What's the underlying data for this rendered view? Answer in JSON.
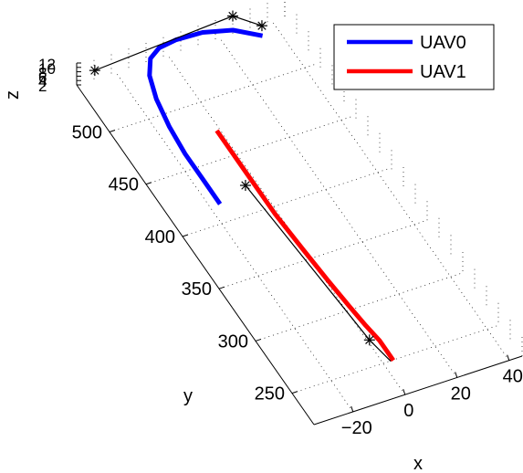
{
  "chart_data": {
    "type": "line",
    "view": "3d",
    "xlabel": "x",
    "ylabel": "y",
    "zlabel": "z",
    "x_ticks": [
      "−20",
      "0",
      "20",
      "40"
    ],
    "y_ticks": [
      "250",
      "300",
      "350",
      "400",
      "450",
      "500"
    ],
    "z_ticks": [
      "2",
      "4",
      "6",
      "8",
      "10",
      "12"
    ],
    "xlim": [
      -35,
      45
    ],
    "ylim": [
      220,
      545
    ],
    "zlim": [
      2,
      12
    ],
    "grid": true,
    "legend_position": "top-right",
    "series": [
      {
        "name": "UAV0",
        "color": "#0000ff",
        "x": [
          -20,
          -20,
          -20,
          -19,
          -17,
          -14,
          -10,
          -5,
          2,
          12,
          22,
          30
        ],
        "y": [
          402,
          425,
          450,
          475,
          500,
          520,
          533,
          539,
          541,
          540,
          534,
          522
        ],
        "z": [
          10,
          10,
          10,
          10,
          10,
          10,
          10,
          10,
          10,
          10,
          10,
          10
        ]
      },
      {
        "name": "UAV1",
        "color": "#ff0000",
        "x": [
          -5,
          -5,
          -5,
          -4,
          -3,
          -2,
          -1,
          0,
          0,
          0
        ],
        "y": [
          460,
          420,
          380,
          345,
          315,
          290,
          270,
          255,
          243,
          236
        ],
        "z": [
          10,
          10,
          10,
          10,
          10,
          10,
          10,
          10,
          10,
          10
        ]
      }
    ],
    "markers": [
      {
        "symbol": "*",
        "x": -30,
        "y": 538,
        "z": 10
      },
      {
        "symbol": "*",
        "x": 25,
        "y": 545,
        "z": 10
      },
      {
        "symbol": "*",
        "x": 32,
        "y": 530,
        "z": 10
      },
      {
        "symbol": "*",
        "x": -8,
        "y": 410,
        "z": 10
      },
      {
        "symbol": "*",
        "x": -3,
        "y": 258,
        "z": 10
      }
    ]
  }
}
